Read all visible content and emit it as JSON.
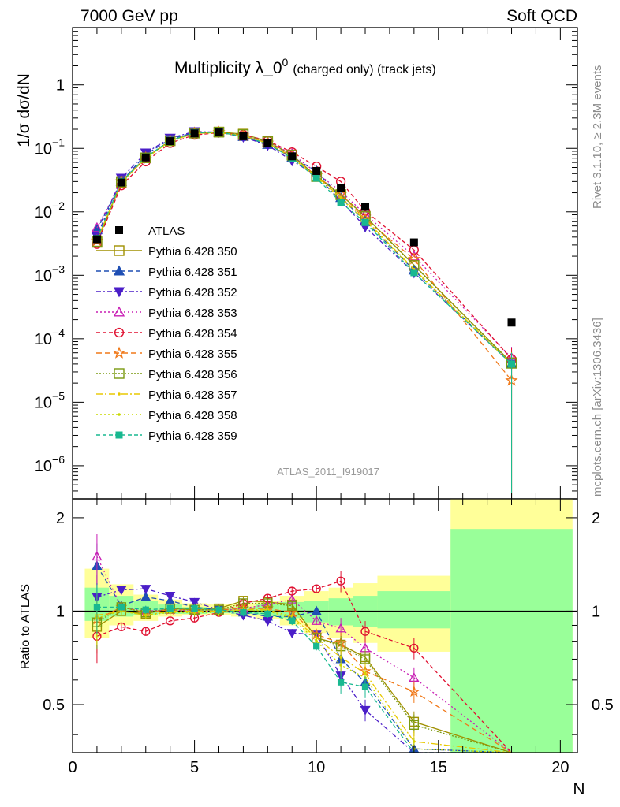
{
  "header": {
    "energy": "7000 GeV pp",
    "process": "Soft QCD"
  },
  "plot_title": {
    "main": "Multiplicity λ_0",
    "superscript": "0",
    "detail": "(charged only) (track jets)"
  },
  "side_notes": {
    "rivet": "Rivet 3.1.10, ≥ 2.3M events",
    "mcplots": "mcplots.cern.ch [arXiv:1306.3436]"
  },
  "analysis_id": "ATLAS_2011_I919017",
  "colors": {
    "data": "#000000",
    "band_inner": "#99ff99",
    "band_outer": "#ffff99"
  },
  "chart_data": [
    {
      "type": "line",
      "panel": "main",
      "ylabel": "1/σ dσ/dN",
      "yscale": "log",
      "ylim": [
        3e-07,
        8
      ],
      "xlim": [
        0,
        20.7
      ],
      "yticks": [
        {
          "value": 1e-06,
          "base": "10",
          "exp": "−6"
        },
        {
          "value": 1e-05,
          "base": "10",
          "exp": "−5"
        },
        {
          "value": 0.0001,
          "base": "10",
          "exp": "−4"
        },
        {
          "value": 0.001,
          "base": "10",
          "exp": "−3"
        },
        {
          "value": 0.01,
          "base": "10",
          "exp": "−2"
        },
        {
          "value": 0.1,
          "base": "10",
          "exp": "−1"
        },
        {
          "value": 1,
          "base": "1",
          "exp": ""
        }
      ],
      "legend_position": "left",
      "data": {
        "name": "ATLAS",
        "x": [
          1,
          2,
          3,
          4,
          5,
          6,
          7,
          8,
          9,
          10,
          11,
          12,
          14,
          18
        ],
        "y": [
          0.0037,
          0.029,
          0.072,
          0.13,
          0.172,
          0.178,
          0.155,
          0.12,
          0.075,
          0.044,
          0.024,
          0.012,
          0.0033,
          0.00018
        ]
      },
      "series": [
        {
          "name": "Pythia 6.428 350",
          "color": "#a09000",
          "dash": "",
          "marker": "open-square",
          "y": [
            0.0033,
            0.029,
            0.071,
            0.132,
            0.174,
            0.181,
            0.168,
            0.129,
            0.079,
            0.036,
            0.0187,
            0.0085,
            0.00145,
            4.2e-05
          ]
        },
        {
          "name": "Pythia 6.428 351",
          "color": "#1f4fb4",
          "dash": "6,4",
          "marker": "filled-triangle-up",
          "y": [
            0.0052,
            0.03,
            0.08,
            0.14,
            0.178,
            0.179,
            0.153,
            0.115,
            0.072,
            0.044,
            0.0167,
            0.0071,
            0.0012,
            4e-05
          ]
        },
        {
          "name": "Pythia 6.428 352",
          "color": "#4b1ec8",
          "dash": "6,3,2,3",
          "marker": "filled-triangle-down",
          "y": [
            0.0041,
            0.034,
            0.085,
            0.145,
            0.184,
            0.18,
            0.151,
            0.112,
            0.064,
            0.037,
            0.0149,
            0.0058,
            0.0011,
            4e-05
          ]
        },
        {
          "name": "Pythia 6.428 353",
          "color": "#c81eb4",
          "dash": "2,3",
          "marker": "open-triangle-up",
          "y": [
            0.0056,
            0.03,
            0.072,
            0.131,
            0.172,
            0.178,
            0.158,
            0.126,
            0.082,
            0.041,
            0.021,
            0.0091,
            0.002,
            5e-05
          ]
        },
        {
          "name": "Pythia 6.428 354",
          "color": "#e01030",
          "dash": "5,3",
          "marker": "open-circle",
          "y": [
            0.0031,
            0.026,
            0.062,
            0.121,
            0.163,
            0.176,
            0.164,
            0.132,
            0.087,
            0.052,
            0.03,
            0.0103,
            0.0025,
            4.8e-05
          ]
        },
        {
          "name": "Pythia 6.428 355",
          "color": "#f07818",
          "dash": "7,4",
          "marker": "open-star",
          "y": [
            0.0035,
            0.03,
            0.071,
            0.131,
            0.174,
            0.179,
            0.158,
            0.122,
            0.074,
            0.037,
            0.019,
            0.0077,
            0.0018,
            2.2e-05
          ]
        },
        {
          "name": "Pythia 6.428 356",
          "color": "#7a9a10",
          "dash": "2,2",
          "marker": "open-square",
          "y": [
            0.0034,
            0.03,
            0.071,
            0.132,
            0.174,
            0.18,
            0.165,
            0.127,
            0.078,
            0.036,
            0.0186,
            0.0084,
            0.00143,
            4.1e-05
          ]
        },
        {
          "name": "Pythia 6.428 357",
          "color": "#e8c800",
          "dash": "8,3,2,3",
          "marker": "tiny",
          "y": [
            0.0036,
            0.029,
            0.07,
            0.13,
            0.171,
            0.178,
            0.157,
            0.121,
            0.072,
            0.036,
            0.017,
            0.0076,
            0.00125,
            4e-05
          ]
        },
        {
          "name": "Pythia 6.428 358",
          "color": "#c8d800",
          "dash": "2,3",
          "marker": "tiny",
          "y": [
            0.0035,
            0.029,
            0.07,
            0.129,
            0.17,
            0.177,
            0.156,
            0.12,
            0.071,
            0.035,
            0.016,
            0.0073,
            0.0012,
            4e-05
          ]
        },
        {
          "name": "Pythia 6.428 359",
          "color": "#18b890",
          "dash": "5,3",
          "marker": "filled-square",
          "y": [
            0.0038,
            0.03,
            0.073,
            0.133,
            0.176,
            0.18,
            0.154,
            0.118,
            0.07,
            0.034,
            0.0141,
            0.0068,
            0.0011,
            4e-05
          ]
        }
      ]
    },
    {
      "type": "line",
      "panel": "ratio",
      "ylabel": "Ratio to ATLAS",
      "xlabel": "N",
      "ylim": [
        0.35,
        2.3
      ],
      "xlim": [
        0,
        20.7
      ],
      "xticks": [
        0,
        5,
        10,
        15,
        20
      ],
      "yticks": [
        0.5,
        1,
        2
      ],
      "bands": [
        {
          "x0": 0.5,
          "x1": 1.5,
          "inner": [
            0.93,
            1.19
          ],
          "outer": [
            0.82,
            1.37
          ]
        },
        {
          "x0": 1.5,
          "x1": 2.5,
          "inner": [
            0.96,
            1.12
          ],
          "outer": [
            0.9,
            1.22
          ]
        },
        {
          "x0": 2.5,
          "x1": 3.5,
          "inner": [
            0.97,
            1.08
          ],
          "outer": [
            0.93,
            1.13
          ]
        },
        {
          "x0": 3.5,
          "x1": 4.5,
          "inner": [
            0.98,
            1.05
          ],
          "outer": [
            0.96,
            1.09
          ]
        },
        {
          "x0": 4.5,
          "x1": 5.5,
          "inner": [
            0.98,
            1.03
          ],
          "outer": [
            0.97,
            1.06
          ]
        },
        {
          "x0": 5.5,
          "x1": 6.5,
          "inner": [
            0.985,
            1.025
          ],
          "outer": [
            0.97,
            1.05
          ]
        },
        {
          "x0": 6.5,
          "x1": 7.5,
          "inner": [
            0.98,
            1.03
          ],
          "outer": [
            0.96,
            1.06
          ]
        },
        {
          "x0": 7.5,
          "x1": 8.5,
          "inner": [
            0.97,
            1.05
          ],
          "outer": [
            0.94,
            1.08
          ]
        },
        {
          "x0": 8.5,
          "x1": 9.5,
          "inner": [
            0.95,
            1.07
          ],
          "outer": [
            0.9,
            1.12
          ]
        },
        {
          "x0": 9.5,
          "x1": 10.5,
          "inner": [
            0.92,
            1.08
          ],
          "outer": [
            0.85,
            1.16
          ]
        },
        {
          "x0": 10.5,
          "x1": 11.5,
          "inner": [
            0.9,
            1.1
          ],
          "outer": [
            0.82,
            1.19
          ]
        },
        {
          "x0": 11.5,
          "x1": 12.5,
          "inner": [
            0.89,
            1.12
          ],
          "outer": [
            0.79,
            1.23
          ]
        },
        {
          "x0": 12.5,
          "x1": 15.5,
          "inner": [
            0.88,
            1.16
          ],
          "outer": [
            0.74,
            1.3
          ]
        },
        {
          "x0": 15.5,
          "x1": 20.5,
          "inner": [
            0.33,
            1.84
          ],
          "outer": [
            0.33,
            2.4
          ]
        }
      ],
      "series": [
        {
          "name": "Pythia 6.428 350",
          "y": [
            0.89,
            1.0,
            0.98,
            1.02,
            1.01,
            1.02,
            1.08,
            1.07,
            1.05,
            0.82,
            0.78,
            0.71,
            0.44,
            0.23
          ]
        },
        {
          "name": "Pythia 6.428 351",
          "y": [
            1.4,
            1.04,
            1.11,
            1.08,
            1.03,
            1.01,
            0.99,
            0.96,
            0.96,
            1.0,
            0.7,
            0.59,
            0.36,
            0.22
          ]
        },
        {
          "name": "Pythia 6.428 352",
          "y": [
            1.11,
            1.17,
            1.18,
            1.12,
            1.07,
            1.01,
            0.97,
            0.93,
            0.85,
            0.84,
            0.62,
            0.48,
            0.33,
            0.22
          ]
        },
        {
          "name": "Pythia 6.428 353",
          "y": [
            1.5,
            1.03,
            1.0,
            1.01,
            1.0,
            1.0,
            1.02,
            1.05,
            1.09,
            0.93,
            0.88,
            0.76,
            0.61,
            0.28
          ]
        },
        {
          "name": "Pythia 6.428 354",
          "y": [
            0.83,
            0.89,
            0.86,
            0.93,
            0.95,
            0.99,
            1.06,
            1.1,
            1.16,
            1.18,
            1.25,
            0.86,
            0.76,
            0.27
          ]
        },
        {
          "name": "Pythia 6.428 355",
          "y": [
            0.94,
            1.03,
            0.99,
            1.01,
            1.01,
            1.01,
            1.02,
            1.02,
            0.99,
            0.84,
            0.79,
            0.64,
            0.55,
            0.12
          ]
        },
        {
          "name": "Pythia 6.428 356",
          "y": [
            0.92,
            1.03,
            0.99,
            1.02,
            1.01,
            1.01,
            1.06,
            1.06,
            1.04,
            0.82,
            0.77,
            0.7,
            0.43,
            0.23
          ]
        },
        {
          "name": "Pythia 6.428 357",
          "y": [
            0.97,
            1.0,
            0.97,
            1.0,
            1.0,
            1.0,
            1.01,
            1.01,
            0.96,
            0.82,
            0.71,
            0.63,
            0.38,
            0.22
          ]
        },
        {
          "name": "Pythia 6.428 358",
          "y": [
            0.95,
            1.0,
            0.97,
            0.99,
            0.99,
            0.99,
            1.01,
            1.0,
            0.95,
            0.8,
            0.67,
            0.61,
            0.36,
            0.22
          ]
        },
        {
          "name": "Pythia 6.428 359",
          "y": [
            1.03,
            1.03,
            1.01,
            1.02,
            1.02,
            1.01,
            0.99,
            0.98,
            0.93,
            0.77,
            0.59,
            0.57,
            0.33,
            0.22
          ]
        }
      ]
    }
  ]
}
